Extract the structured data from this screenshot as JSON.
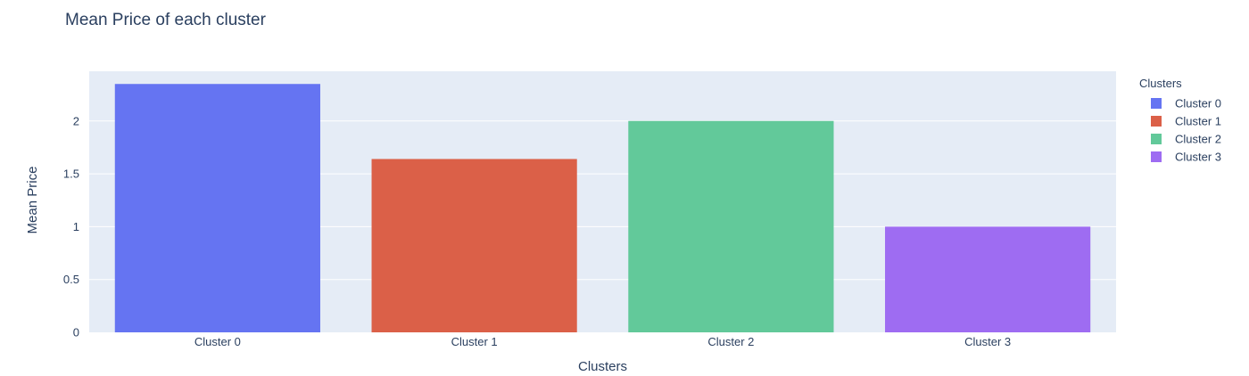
{
  "chart_data": {
    "type": "bar",
    "title": "Mean Price of each cluster",
    "xlabel": "Clusters",
    "ylabel": "Mean Price",
    "categories": [
      "Cluster 0",
      "Cluster 1",
      "Cluster 2",
      "Cluster 3"
    ],
    "values": [
      2.35,
      1.64,
      2.0,
      1.0
    ],
    "ylim": [
      0,
      2.47
    ],
    "yticks": [
      0,
      0.5,
      1,
      1.5,
      2
    ],
    "ytick_labels": [
      "0",
      "0.5",
      "1",
      "1.5",
      "2"
    ],
    "grid": true,
    "legend": {
      "title": "Clusters",
      "placement": "right",
      "entries": [
        "Cluster 0",
        "Cluster 1",
        "Cluster 2",
        "Cluster 3"
      ]
    },
    "colors": [
      "#636efa",
      "#ef553b",
      "#00cc96",
      "#ab63fa"
    ],
    "bar_colors": [
      "#6574f2",
      "#db6048",
      "#62c99a",
      "#9e6cf2"
    ],
    "plot_background": "#e5ecf6"
  }
}
